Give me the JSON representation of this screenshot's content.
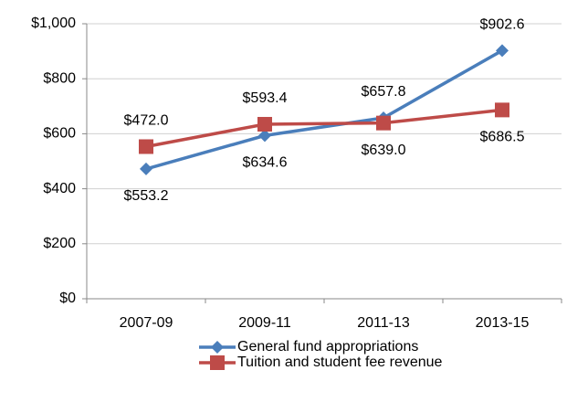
{
  "chart_data": {
    "type": "line",
    "categories": [
      "2007-09",
      "2009-11",
      "2011-13",
      "2013-15"
    ],
    "series": [
      {
        "name": "General fund appropriations",
        "color": "#4a7ebb",
        "values": [
          472.0,
          593.4,
          657.8,
          902.6
        ],
        "value_labels": [
          "$472.0",
          "$593.4",
          "$657.8",
          "$902.6"
        ],
        "marker": "diamond"
      },
      {
        "name": "Tuition and student fee revenue",
        "color": "#be4b48",
        "values": [
          553.2,
          634.6,
          639.0,
          686.5
        ],
        "value_labels": [
          "$553.2",
          "$634.6",
          "$639.0",
          "$686.5"
        ],
        "marker": "square"
      }
    ],
    "ylim": [
      0,
      1000
    ],
    "yticks": [
      {
        "value": 0,
        "label": "$0"
      },
      {
        "value": 200,
        "label": "$200"
      },
      {
        "value": 400,
        "label": "$400"
      },
      {
        "value": 600,
        "label": "$600"
      },
      {
        "value": 800,
        "label": "$800"
      },
      {
        "value": 1000,
        "label": "$1,000"
      }
    ],
    "grid": true,
    "legend": "bottom"
  }
}
